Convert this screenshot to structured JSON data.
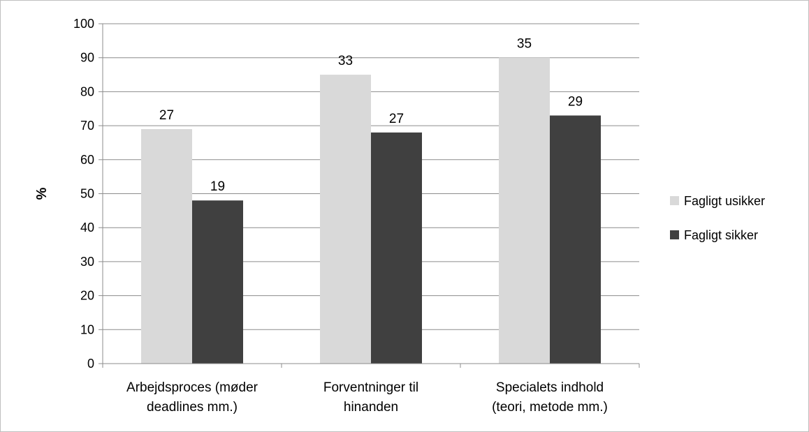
{
  "chart_data": {
    "type": "bar",
    "title": "",
    "xlabel": "",
    "ylabel": "%",
    "ylim": [
      0,
      100
    ],
    "yticks": [
      0,
      10,
      20,
      30,
      40,
      50,
      60,
      70,
      80,
      90,
      100
    ],
    "grid": true,
    "legend_position": "right",
    "categories": [
      [
        "Arbejdsproces (møder",
        "deadlines mm.)"
      ],
      [
        "Forventninger til",
        "hinanden"
      ],
      [
        "Specialets indhold",
        "(teori, metode mm.)"
      ]
    ],
    "series": [
      {
        "name": "Fagligt usikker",
        "color": "#d9d9d9",
        "values": [
          69,
          85,
          90
        ],
        "labels": [
          "27",
          "33",
          "35"
        ]
      },
      {
        "name": "Fagligt sikker",
        "color": "#404040",
        "values": [
          48,
          68,
          73
        ],
        "labels": [
          "19",
          "27",
          "29"
        ]
      }
    ]
  }
}
